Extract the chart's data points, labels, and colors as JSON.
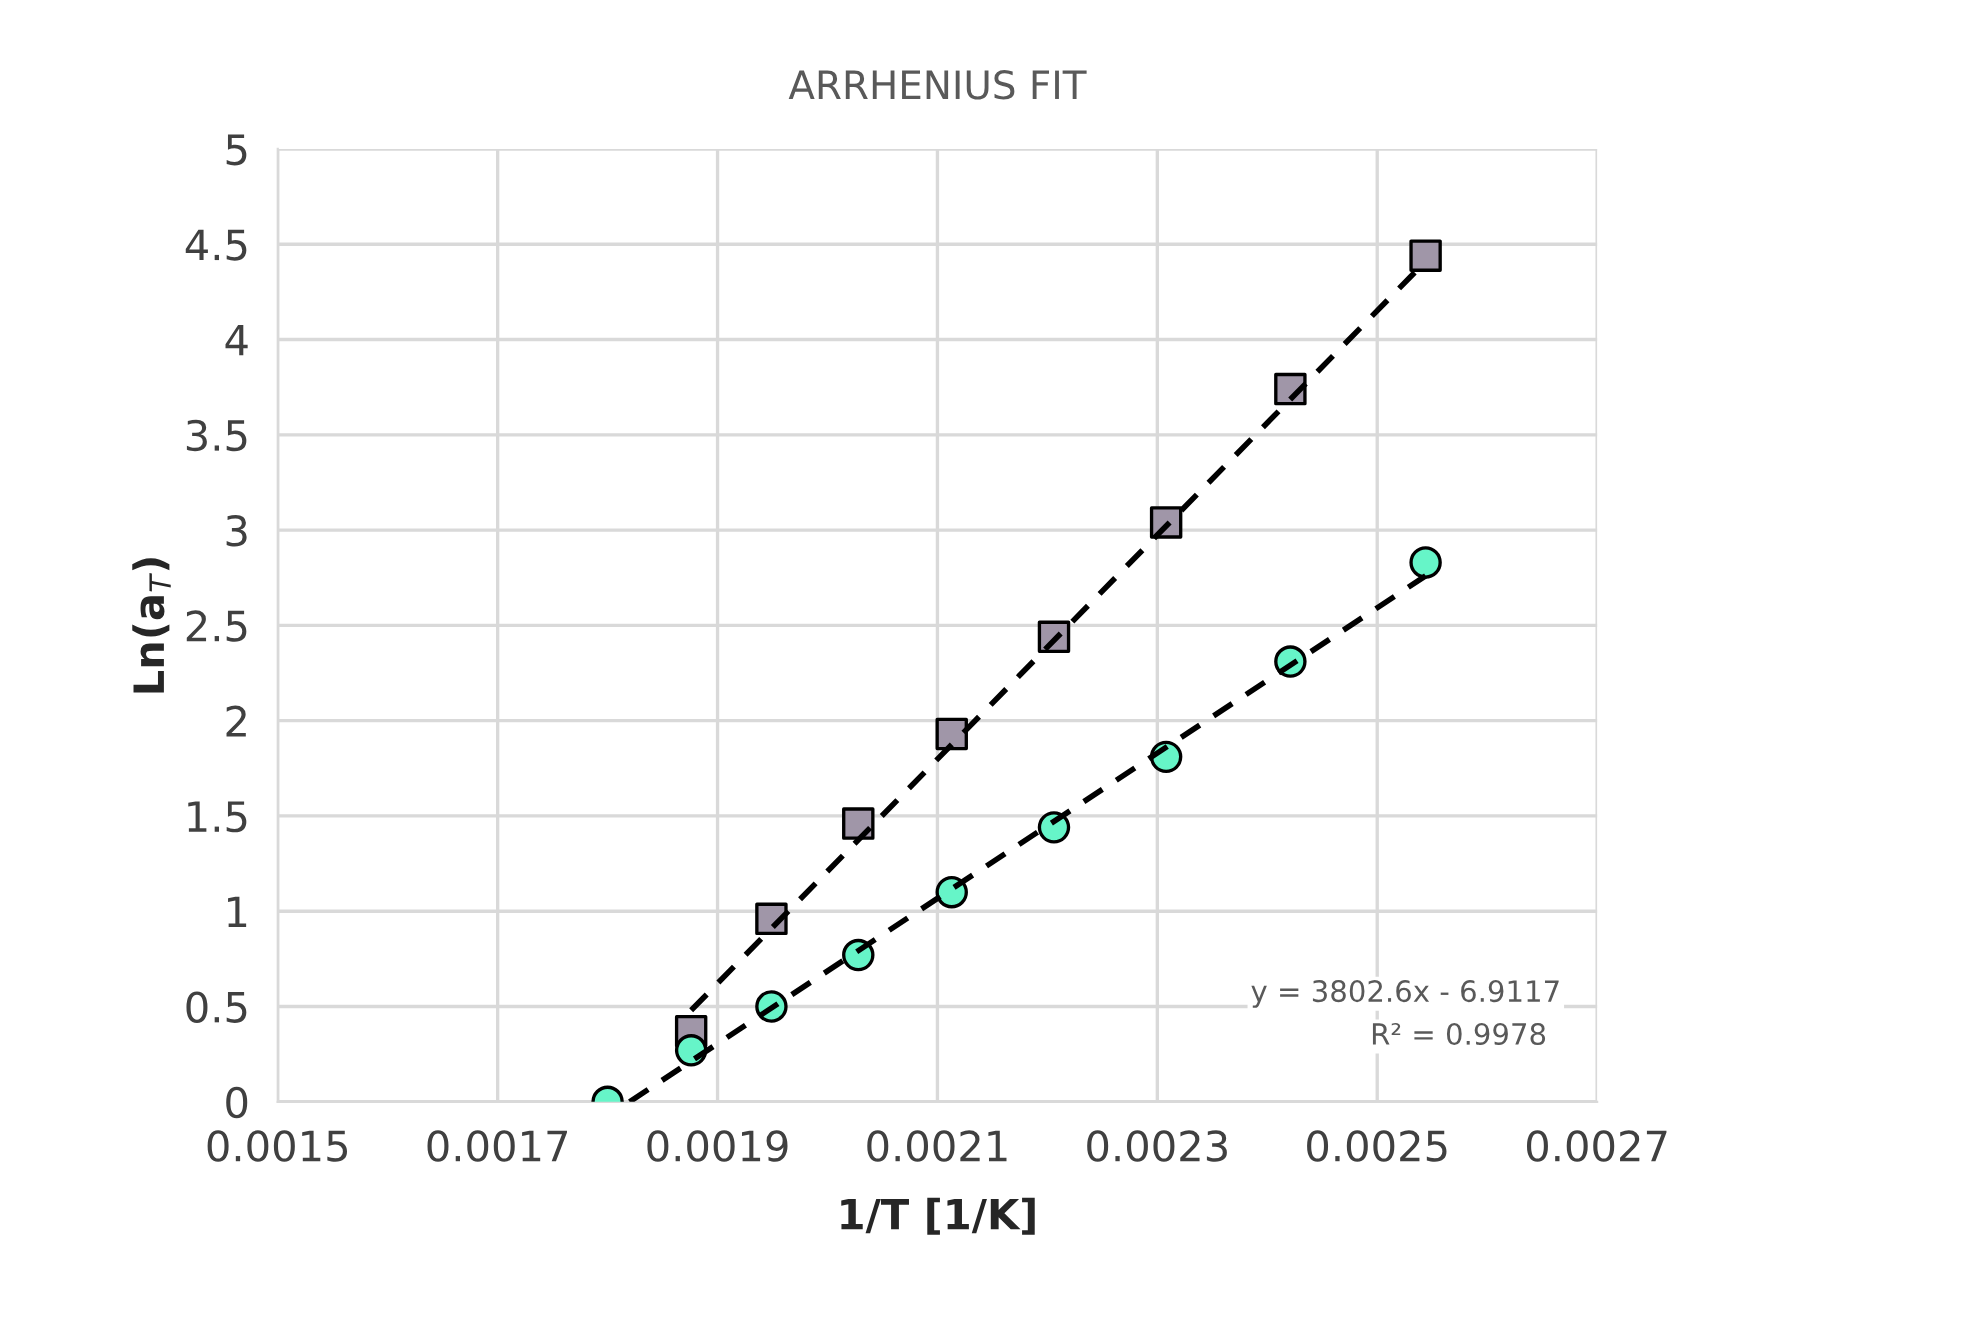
{
  "chart_data": {
    "type": "scatter",
    "title": "ARRHENIUS FIT",
    "xlabel": "1/T [1/K]",
    "ylabel": "Ln(a$_{T}$)",
    "series": [
      {
        "marker": "square",
        "color": "#a096a8",
        "x": [
          0.001876,
          0.001949,
          0.002028,
          0.002113,
          0.002206,
          0.002308,
          0.002421,
          0.002544
        ],
        "values": [
          0.37,
          0.96,
          1.46,
          1.93,
          2.44,
          3.04,
          3.74,
          4.44
        ]
      },
      {
        "marker": "circle",
        "color": "#66f5c8",
        "x": [
          0.0018,
          0.001876,
          0.001949,
          0.002028,
          0.002113,
          0.002206,
          0.002308,
          0.002421,
          0.002544
        ],
        "values": [
          0,
          0.27,
          0.5,
          0.77,
          1.1,
          1.44,
          1.81,
          2.31,
          2.83
        ]
      },
      {
        "type": "line",
        "line_style": "dashed",
        "marker": "none",
        "color": "#000000",
        "x": [
          0.001876,
          0.002544
        ],
        "values": [
          0.48,
          4.41
        ]
      },
      {
        "type": "line",
        "line_style": "dashed",
        "marker": "none",
        "color": "#000000",
        "x": [
          0.00182,
          0.002544
        ],
        "values": [
          0,
          2.76
        ]
      }
    ],
    "annotations": [
      "y = 3802.6x - 6.9117",
      "R² = 0.9978"
    ],
    "xlim": [
      0.0015,
      0.0027
    ],
    "xticks": [
      0.0015,
      0.0017,
      0.0019,
      0.0021,
      0.0023,
      0.0025,
      0.0027
    ],
    "ylim": [
      0,
      5
    ],
    "yticks": [
      0,
      0.5,
      1,
      1.5,
      2,
      2.5,
      3,
      3.5,
      4,
      4.5,
      5
    ],
    "grid": true,
    "legend": false
  }
}
